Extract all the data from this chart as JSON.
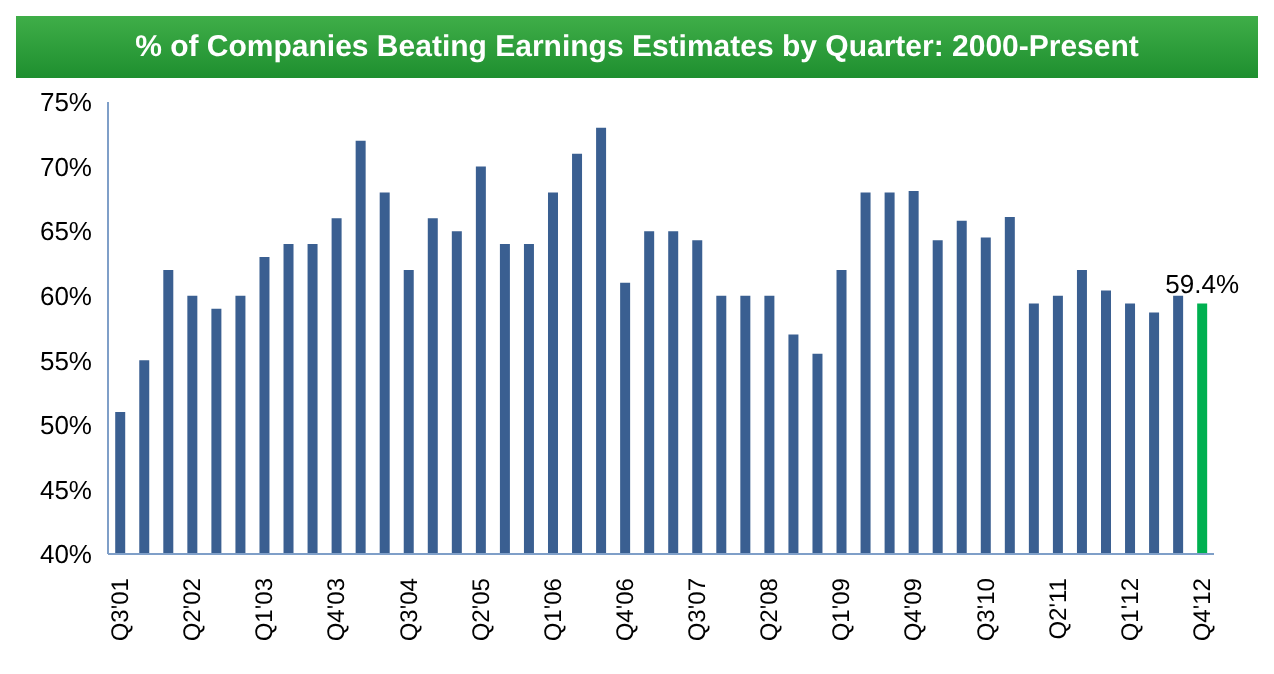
{
  "chart_data": {
    "type": "bar",
    "title": "% of Companies Beating Earnings Estimates by Quarter: 2000-Present",
    "categories": [
      "Q3'01",
      null,
      null,
      "Q2'02",
      null,
      null,
      "Q1'03",
      null,
      null,
      "Q4'03",
      null,
      null,
      "Q3'04",
      null,
      null,
      "Q2'05",
      null,
      null,
      "Q1'06",
      null,
      null,
      "Q4'06",
      null,
      null,
      "Q3'07",
      null,
      null,
      "Q2'08",
      null,
      null,
      "Q1'09",
      null,
      null,
      "Q4'09",
      null,
      null,
      "Q3'10",
      null,
      null,
      "Q2'11",
      null,
      null,
      "Q1'12",
      null,
      null,
      "Q4'12"
    ],
    "values": [
      51,
      55,
      62,
      60,
      59,
      60,
      63,
      64,
      64,
      66,
      72,
      68,
      62,
      66,
      65,
      70,
      64,
      64,
      68,
      71,
      73,
      61,
      65,
      65,
      64.3,
      60,
      60,
      60,
      57,
      55.5,
      62,
      68,
      68,
      68.1,
      64.3,
      65.8,
      64.5,
      66.1,
      59.4,
      60,
      62,
      60.4,
      59.4,
      58.7,
      60,
      59.4
    ],
    "colors": [
      "#3a5f91",
      "#3a5f91",
      "#3a5f91",
      "#3a5f91",
      "#3a5f91",
      "#3a5f91",
      "#3a5f91",
      "#3a5f91",
      "#3a5f91",
      "#3a5f91",
      "#3a5f91",
      "#3a5f91",
      "#3a5f91",
      "#3a5f91",
      "#3a5f91",
      "#3a5f91",
      "#3a5f91",
      "#3a5f91",
      "#3a5f91",
      "#3a5f91",
      "#3a5f91",
      "#3a5f91",
      "#3a5f91",
      "#3a5f91",
      "#3a5f91",
      "#3a5f91",
      "#3a5f91",
      "#3a5f91",
      "#3a5f91",
      "#3a5f91",
      "#3a5f91",
      "#3a5f91",
      "#3a5f91",
      "#3a5f91",
      "#3a5f91",
      "#3a5f91",
      "#3a5f91",
      "#3a5f91",
      "#3a5f91",
      "#3a5f91",
      "#3a5f91",
      "#3a5f91",
      "#3a5f91",
      "#3a5f91",
      "#3a5f91",
      "#00b050"
    ],
    "value_labels": [
      null,
      null,
      null,
      null,
      null,
      null,
      null,
      null,
      null,
      null,
      null,
      null,
      null,
      null,
      null,
      null,
      null,
      null,
      null,
      null,
      null,
      null,
      null,
      null,
      null,
      null,
      null,
      null,
      null,
      null,
      null,
      null,
      null,
      null,
      null,
      null,
      null,
      null,
      null,
      null,
      null,
      null,
      null,
      null,
      null,
      "59.4%"
    ],
    "ylim": [
      40,
      75
    ],
    "yticks": [
      {
        "value": 40,
        "label": "40%"
      },
      {
        "value": 45,
        "label": "45%"
      },
      {
        "value": 50,
        "label": "50%"
      },
      {
        "value": 55,
        "label": "55%"
      },
      {
        "value": 60,
        "label": "60%"
      },
      {
        "value": 65,
        "label": "65%"
      },
      {
        "value": 70,
        "label": "70%"
      },
      {
        "value": 75,
        "label": "75%"
      }
    ],
    "grid": false
  }
}
